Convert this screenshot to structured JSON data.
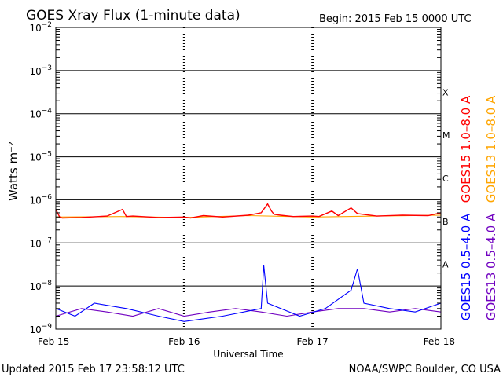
{
  "header": {
    "title": "GOES Xray Flux (1-minute data)",
    "begin": "Begin:  2015 Feb 15 0000 UTC"
  },
  "footer": {
    "updated": "Updated 2015 Feb 17 23:58:12 UTC",
    "credit": "NOAA/SWPC Boulder, CO USA"
  },
  "colors": {
    "goes15_long": "#ff0000",
    "goes13_long": "#ffa500",
    "goes15_short": "#0000ff",
    "goes13_short": "#7000c0",
    "text": "#000000"
  },
  "chart_data": {
    "type": "line",
    "title": "GOES Xray Flux (1-minute data)",
    "xlabel": "Universal Time",
    "ylabel": "Watts m⁻²",
    "yscale": "log",
    "ylim": [
      1e-09,
      0.01
    ],
    "xlim_days": [
      "2015-02-15",
      "2015-02-18"
    ],
    "x_ticks": [
      "Feb 15",
      "Feb 16",
      "Feb 17",
      "Feb 18"
    ],
    "y_ticks": [
      {
        "base": "10",
        "exp": "−2",
        "value": 0.01
      },
      {
        "base": "10",
        "exp": "−3",
        "value": 0.001
      },
      {
        "base": "10",
        "exp": "−4",
        "value": 0.0001
      },
      {
        "base": "10",
        "exp": "−5",
        "value": 1e-05
      },
      {
        "base": "10",
        "exp": "−6",
        "value": 1e-06
      },
      {
        "base": "10",
        "exp": "−7",
        "value": 1e-07
      },
      {
        "base": "10",
        "exp": "−8",
        "value": 1e-08
      },
      {
        "base": "10",
        "exp": "−9",
        "value": 1e-09
      }
    ],
    "flare_classes": [
      {
        "label": "X",
        "lower": 0.0001
      },
      {
        "label": "M",
        "lower": 1e-05
      },
      {
        "label": "C",
        "lower": 1e-06
      },
      {
        "label": "B",
        "lower": 1e-07
      },
      {
        "label": "A",
        "lower": 1e-08
      }
    ],
    "grid": true,
    "legend_placement": "right",
    "series": [
      {
        "name": "GOES15 1.0–8.0 A",
        "color": "#ff0000",
        "x": [
          0.0,
          0.03,
          0.05,
          0.2,
          0.4,
          0.52,
          0.55,
          0.6,
          0.8,
          1.0,
          1.05,
          1.15,
          1.3,
          1.5,
          1.6,
          1.65,
          1.68,
          1.7,
          1.75,
          1.85,
          2.0,
          2.05,
          2.15,
          2.2,
          2.3,
          2.35,
          2.5,
          2.7,
          2.9,
          3.0
        ],
        "y": [
          6e-07,
          4e-07,
          3.8e-07,
          3.9e-07,
          4.2e-07,
          6e-07,
          4.1e-07,
          4.2e-07,
          3.9e-07,
          4e-07,
          3.8e-07,
          4.3e-07,
          4e-07,
          4.4e-07,
          5e-07,
          8e-07,
          5.5e-07,
          4.6e-07,
          4.4e-07,
          4.1e-07,
          4.2e-07,
          4.1e-07,
          5.5e-07,
          4.3e-07,
          6.5e-07,
          4.8e-07,
          4.2e-07,
          4.4e-07,
          4.3e-07,
          5e-07
        ]
      },
      {
        "name": "GOES13 1.0–8.0 A",
        "color": "#ffa500",
        "x": [
          0.0,
          0.5,
          1.0,
          1.5,
          2.0,
          2.5,
          3.0
        ],
        "y": [
          4e-07,
          4.1e-07,
          3.9e-07,
          4.3e-07,
          4e-07,
          4.2e-07,
          4.4e-07
        ]
      },
      {
        "name": "GOES15 0.5–4.0 A",
        "color": "#0000ff",
        "x": [
          0.0,
          0.15,
          0.3,
          0.55,
          0.8,
          1.0,
          1.3,
          1.6,
          1.62,
          1.65,
          1.9,
          2.1,
          2.3,
          2.35,
          2.4,
          2.6,
          2.8,
          3.0
        ],
        "y": [
          3e-09,
          2e-09,
          4e-09,
          3e-09,
          2e-09,
          1.5e-09,
          2e-09,
          3e-09,
          3e-08,
          4e-09,
          2e-09,
          3e-09,
          8e-09,
          2.5e-08,
          4e-09,
          3e-09,
          2.5e-09,
          4e-09
        ]
      },
      {
        "name": "GOES13 0.5–4.0 A",
        "color": "#7000c0",
        "x": [
          0.0,
          0.2,
          0.4,
          0.6,
          0.8,
          1.0,
          1.2,
          1.4,
          1.6,
          1.8,
          2.0,
          2.2,
          2.4,
          2.6,
          2.8,
          3.0
        ],
        "y": [
          2e-09,
          3e-09,
          2.5e-09,
          2e-09,
          3e-09,
          2e-09,
          2.5e-09,
          3e-09,
          2.5e-09,
          2e-09,
          2.5e-09,
          3e-09,
          3e-09,
          2.5e-09,
          3e-09,
          2.5e-09
        ]
      }
    ]
  }
}
